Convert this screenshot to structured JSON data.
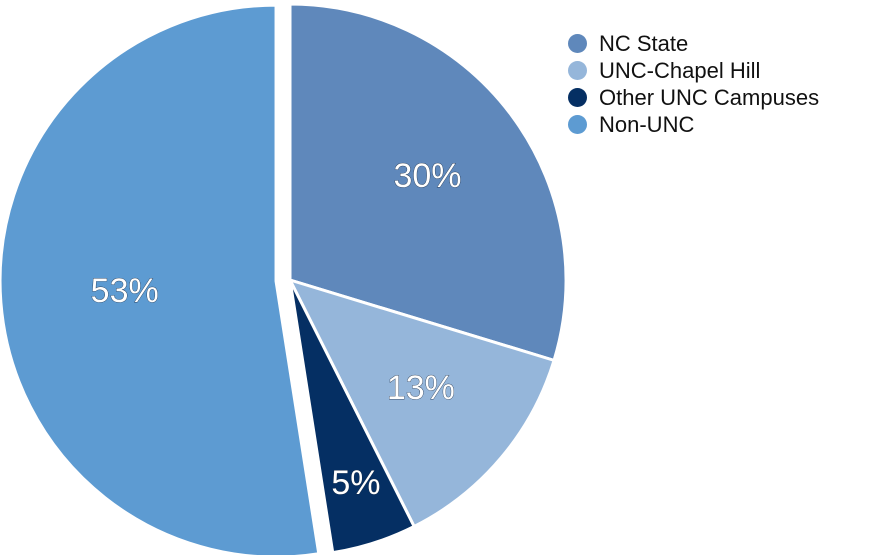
{
  "chart_data": {
    "type": "pie",
    "categories": [
      "NC State",
      "UNC-Chapel Hill",
      "Other UNC Campuses",
      "Non-UNC"
    ],
    "values": [
      30,
      13,
      5,
      53
    ],
    "labels": [
      "30%",
      "13%",
      "5%",
      "53%"
    ],
    "colors": [
      "#5f88bb",
      "#95b6da",
      "#052f63",
      "#5d9bd2"
    ],
    "exploded": "Non-UNC",
    "legend_position": "top-right"
  }
}
